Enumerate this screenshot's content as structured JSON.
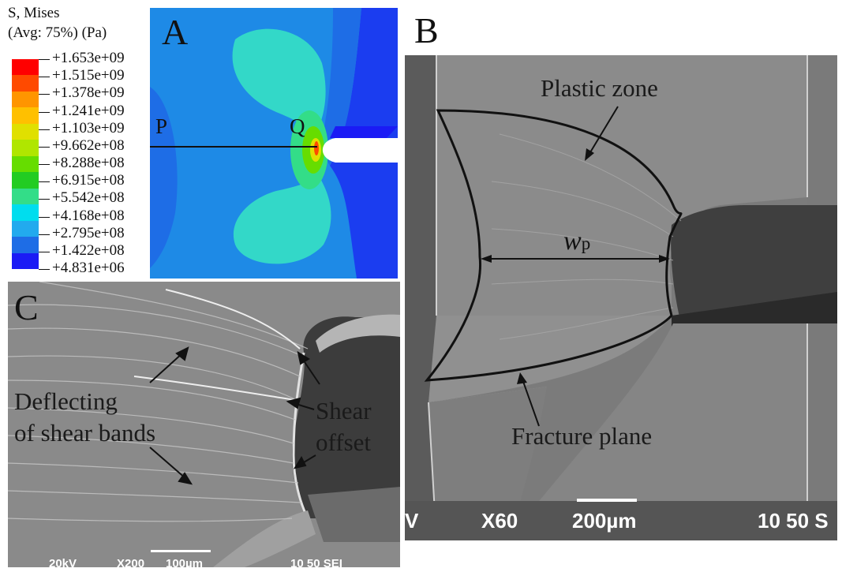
{
  "legend": {
    "title_line1": "S, Mises",
    "title_line2": "(Avg: 75%) (Pa)",
    "values": [
      "+1.653e+09",
      "+1.515e+09",
      "+1.378e+09",
      "+1.241e+09",
      "+1.103e+09",
      "+9.662e+08",
      "+8.288e+08",
      "+6.915e+08",
      "+5.542e+08",
      "+4.168e+08",
      "+2.795e+08",
      "+1.422e+08",
      "+4.831e+06"
    ],
    "colors": [
      "#ff0000",
      "#ff4a00",
      "#ff9500",
      "#ffc000",
      "#e0e000",
      "#b0e600",
      "#66dd00",
      "#22cc22",
      "#33dd88",
      "#00ddee",
      "#22aaee",
      "#1e6de6",
      "#1b1bf5"
    ]
  },
  "panels": {
    "a": {
      "letter": "A",
      "label_p": "P",
      "label_q": "Q"
    },
    "b": {
      "letter": "B",
      "plastic_zone": "Plastic zone",
      "wp_main": "w",
      "wp_sub": "p",
      "fracture_plane": "Fracture plane",
      "footer": {
        "kv": "V",
        "mag": "X60",
        "scale": "200µm",
        "code": "10 50 S"
      }
    },
    "c": {
      "letter": "C",
      "deflecting_line1": "Deflecting",
      "deflecting_line2": "of shear bands",
      "shear_offset_line1": "Shear",
      "shear_offset_line2": "offset",
      "footer": {
        "kv": "20kV",
        "mag": "X200",
        "scale": "100µm",
        "code": "10 50 SEI"
      }
    }
  }
}
